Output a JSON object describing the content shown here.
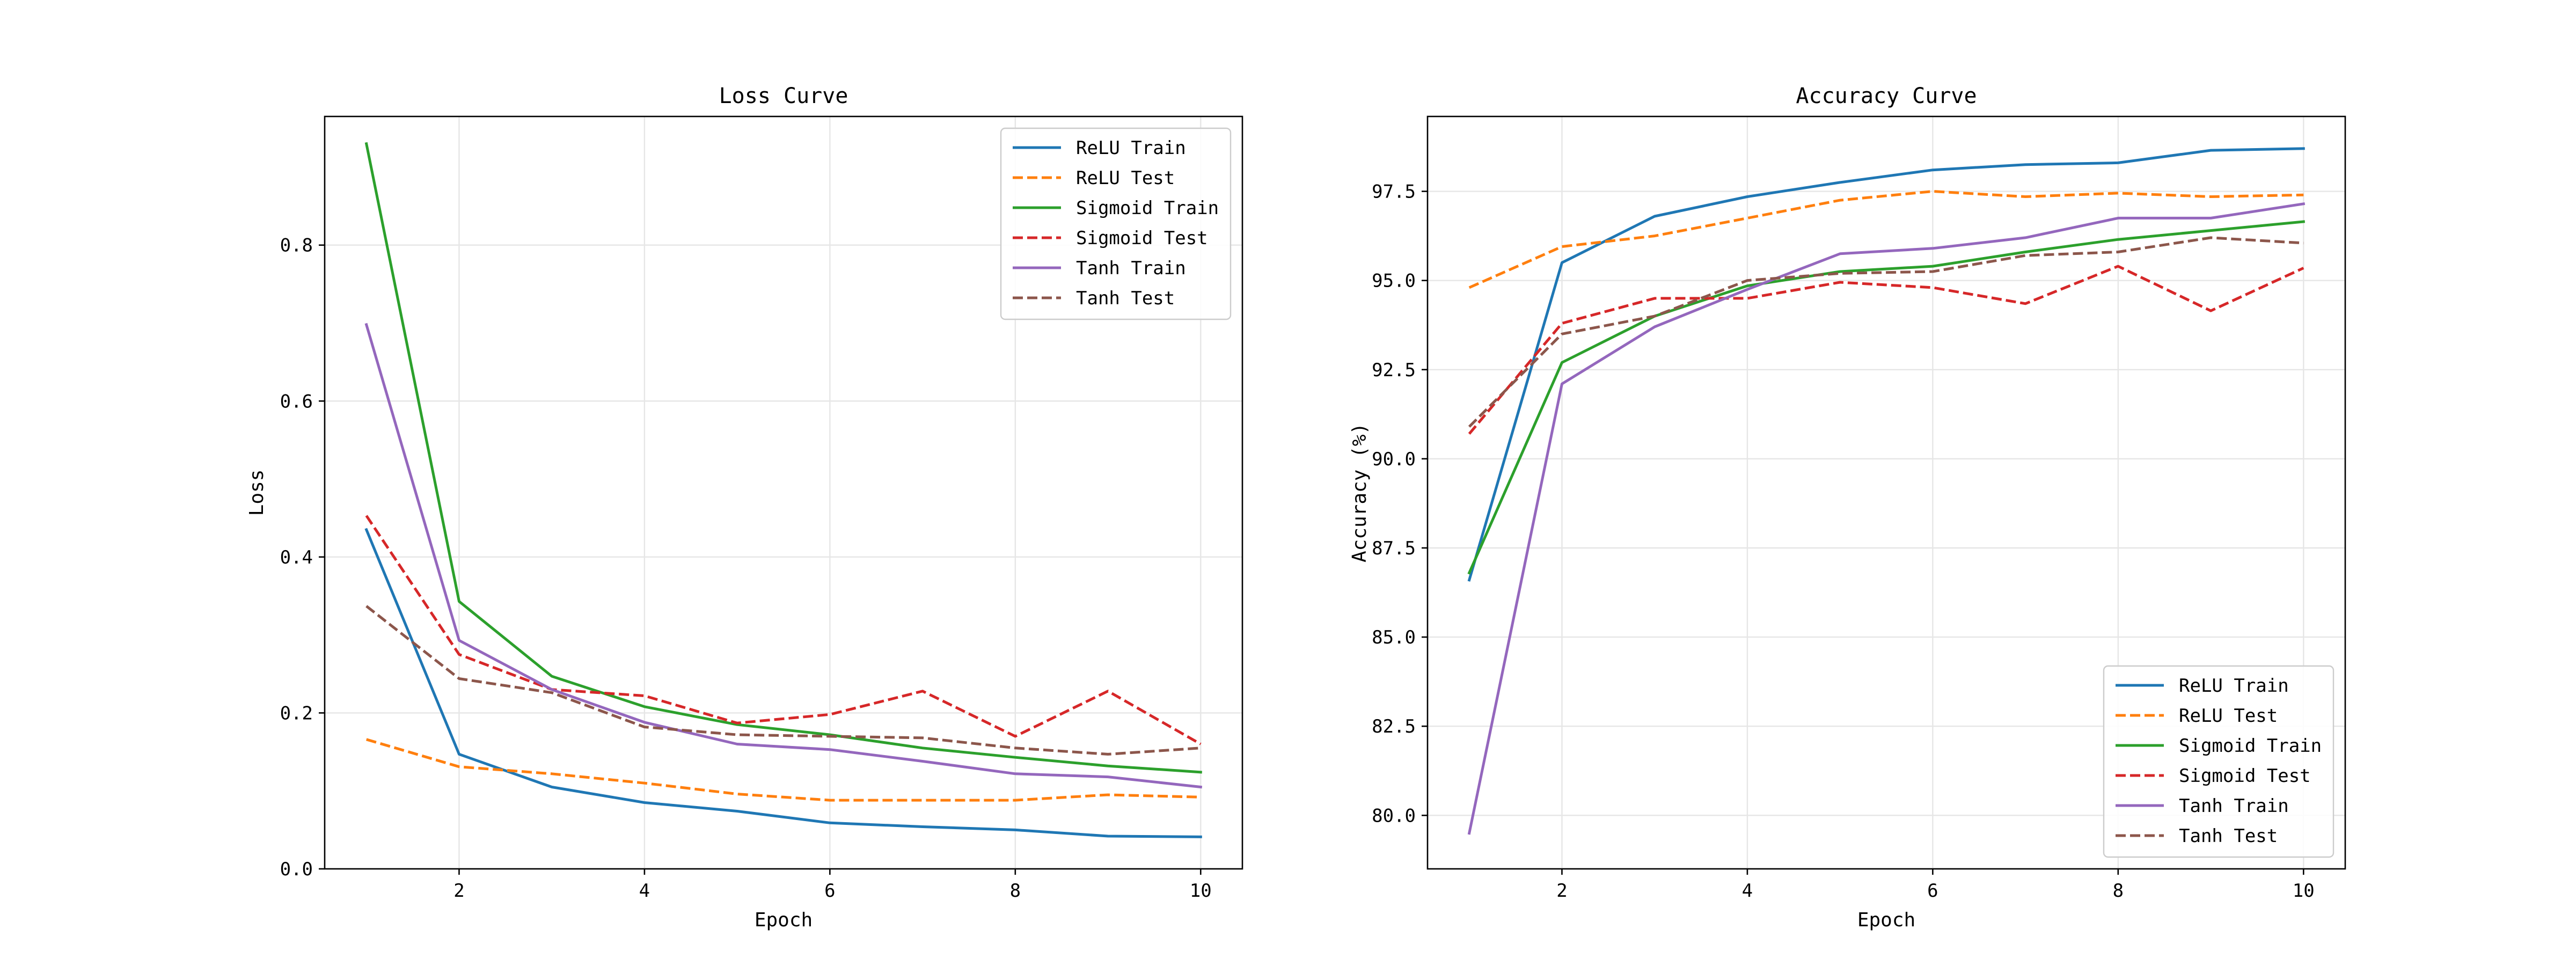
{
  "chart_data": [
    {
      "type": "line",
      "title": "Loss Curve",
      "xlabel": "Epoch",
      "ylabel": "Loss",
      "xlim": [
        0.55,
        10.45
      ],
      "ylim": [
        0,
        0.965
      ],
      "xticks": [
        2,
        4,
        6,
        8,
        10
      ],
      "yticks": [
        0.0,
        0.2,
        0.4,
        0.6,
        0.8
      ],
      "ytick_decimals": 1,
      "grid": true,
      "legend_position": "top-right",
      "x": [
        1,
        2,
        3,
        4,
        5,
        6,
        7,
        8,
        9,
        10
      ],
      "series": [
        {
          "name": "ReLU Train",
          "color": "#1f77b4",
          "dash": "solid",
          "values": [
            0.435,
            0.147,
            0.105,
            0.085,
            0.074,
            0.059,
            0.054,
            0.05,
            0.042,
            0.041
          ]
        },
        {
          "name": "ReLU Test",
          "color": "#ff7f0e",
          "dash": "dashed",
          "values": [
            0.166,
            0.131,
            0.122,
            0.11,
            0.096,
            0.088,
            0.088,
            0.088,
            0.095,
            0.092
          ]
        },
        {
          "name": "Sigmoid Train",
          "color": "#2ca02c",
          "dash": "solid",
          "values": [
            0.93,
            0.343,
            0.247,
            0.208,
            0.185,
            0.172,
            0.155,
            0.143,
            0.132,
            0.124
          ]
        },
        {
          "name": "Sigmoid Test",
          "color": "#d62728",
          "dash": "dashed",
          "values": [
            0.453,
            0.275,
            0.23,
            0.222,
            0.187,
            0.198,
            0.228,
            0.17,
            0.228,
            0.16
          ]
        },
        {
          "name": "Tanh Train",
          "color": "#9467bd",
          "dash": "solid",
          "values": [
            0.698,
            0.293,
            0.23,
            0.188,
            0.16,
            0.153,
            0.138,
            0.122,
            0.118,
            0.105
          ]
        },
        {
          "name": "Tanh Test",
          "color": "#8c564b",
          "dash": "dashed",
          "values": [
            0.337,
            0.244,
            0.226,
            0.182,
            0.172,
            0.17,
            0.168,
            0.155,
            0.147,
            0.155
          ]
        }
      ]
    },
    {
      "type": "line",
      "title": "Accuracy Curve",
      "xlabel": "Epoch",
      "ylabel": "Accuracy (%)",
      "xlim": [
        0.55,
        10.45
      ],
      "ylim": [
        78.5,
        99.6
      ],
      "xticks": [
        2,
        4,
        6,
        8,
        10
      ],
      "yticks": [
        80.0,
        82.5,
        85.0,
        87.5,
        90.0,
        92.5,
        95.0,
        97.5
      ],
      "ytick_decimals": 1,
      "grid": true,
      "legend_position": "bottom-right",
      "x": [
        1,
        2,
        3,
        4,
        5,
        6,
        7,
        8,
        9,
        10
      ],
      "series": [
        {
          "name": "ReLU Train",
          "color": "#1f77b4",
          "dash": "solid",
          "values": [
            86.6,
            95.5,
            96.8,
            97.35,
            97.75,
            98.1,
            98.25,
            98.3,
            98.65,
            98.7
          ]
        },
        {
          "name": "ReLU Test",
          "color": "#ff7f0e",
          "dash": "dashed",
          "values": [
            94.8,
            95.95,
            96.25,
            96.75,
            97.25,
            97.5,
            97.35,
            97.45,
            97.35,
            97.4
          ]
        },
        {
          "name": "Sigmoid Train",
          "color": "#2ca02c",
          "dash": "solid",
          "values": [
            86.8,
            92.7,
            94.0,
            94.85,
            95.25,
            95.4,
            95.8,
            96.15,
            96.4,
            96.65
          ]
        },
        {
          "name": "Sigmoid Test",
          "color": "#d62728",
          "dash": "dashed",
          "values": [
            90.7,
            93.8,
            94.5,
            94.5,
            94.95,
            94.8,
            94.35,
            95.4,
            94.15,
            95.35
          ]
        },
        {
          "name": "Tanh Train",
          "color": "#9467bd",
          "dash": "solid",
          "values": [
            79.5,
            92.1,
            93.7,
            94.75,
            95.75,
            95.9,
            96.2,
            96.75,
            96.75,
            97.15
          ]
        },
        {
          "name": "Tanh Test",
          "color": "#8c564b",
          "dash": "dashed",
          "values": [
            90.9,
            93.5,
            94.0,
            95.0,
            95.2,
            95.25,
            95.7,
            95.8,
            96.2,
            96.05
          ]
        }
      ]
    }
  ]
}
